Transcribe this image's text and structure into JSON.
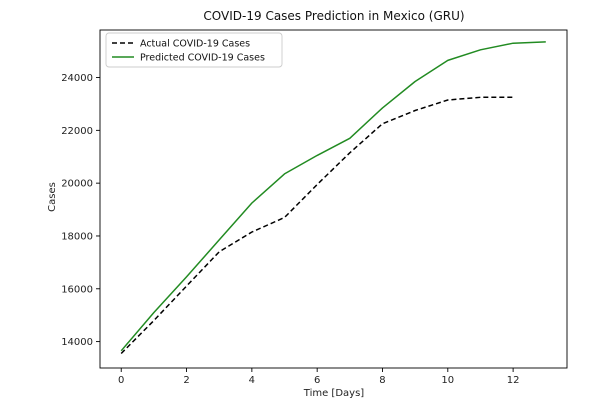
{
  "chart_data": {
    "type": "line",
    "title": "COVID-19 Cases Prediction in Mexico (GRU)",
    "xlabel": "Time [Days]",
    "ylabel": "Cases",
    "xlim": [
      -0.65,
      13.65
    ],
    "ylim": [
      13000,
      25800
    ],
    "xticks": [
      0,
      2,
      4,
      6,
      8,
      10,
      12
    ],
    "yticks": [
      14000,
      16000,
      18000,
      20000,
      22000,
      24000
    ],
    "grid": false,
    "legend": "upper left",
    "series": [
      {
        "name": "Actual COVID-19 Cases",
        "color": "#000000",
        "style": "dashed",
        "x": [
          0,
          1,
          2,
          3,
          4,
          5,
          6,
          7,
          8,
          9,
          10,
          11,
          12
        ],
        "y": [
          13550,
          14800,
          16100,
          17400,
          18150,
          18700,
          19950,
          21150,
          22250,
          22750,
          23150,
          23250,
          23250
        ]
      },
      {
        "name": "Predicted COVID-19 Cases",
        "color": "#228b22",
        "style": "solid",
        "x": [
          0,
          1,
          2,
          3,
          4,
          5,
          6,
          7,
          8,
          9,
          10,
          11,
          12,
          13
        ],
        "y": [
          13650,
          15100,
          16450,
          17850,
          19250,
          20350,
          21050,
          21700,
          22850,
          23850,
          24650,
          25050,
          25300,
          25350
        ]
      }
    ]
  }
}
